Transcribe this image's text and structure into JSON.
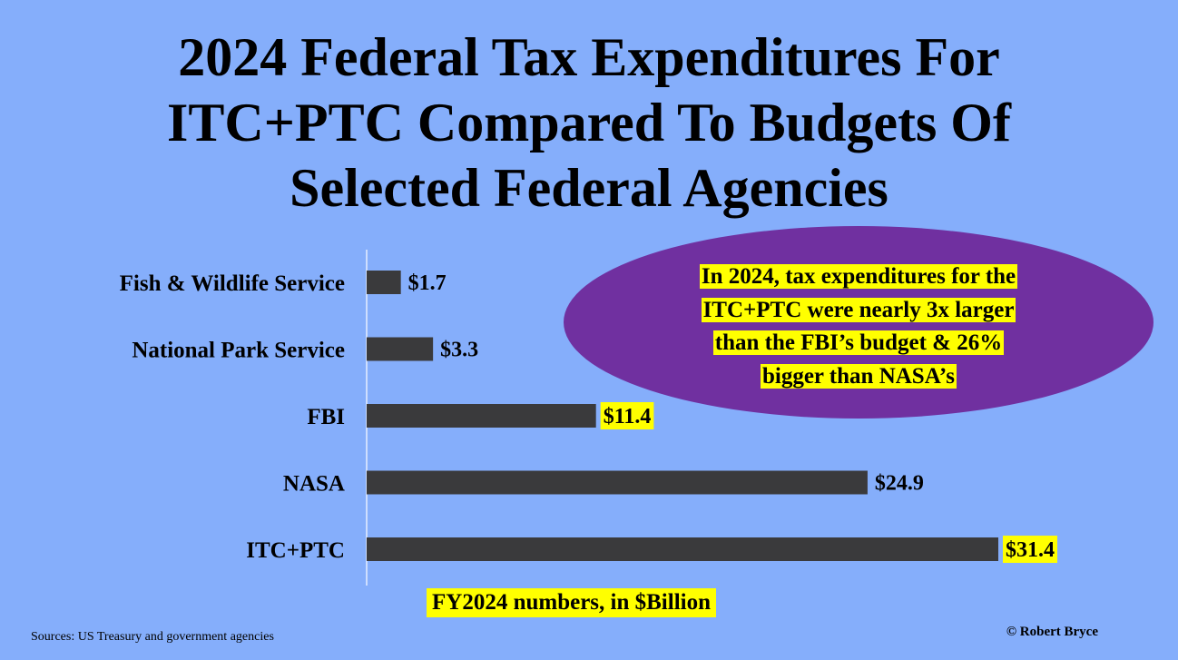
{
  "title_lines": [
    "2024 Federal Tax Expenditures For",
    "ITC+PTC Compared To Budgets Of",
    "Selected Federal Agencies"
  ],
  "callout": {
    "lines": [
      "In 2024, tax expenditures for the",
      "ITC+PTC were nearly 3x larger",
      "than the FBI’s budget & 26%",
      "bigger than NASA’s"
    ],
    "oval_color": "#7030a0",
    "highlight_color": "#ffff00"
  },
  "units_note": "FY2024 numbers, in $Billion",
  "sources": "Sources: US Treasury and government agencies",
  "copyright": "© Robert Bryce",
  "colors": {
    "background": "#85aefb",
    "bar": "#3a3a3c",
    "highlight": "#ffff00"
  },
  "chart_data": {
    "type": "bar",
    "orientation": "horizontal",
    "categories": [
      "Fish & Wildlife Service",
      "National Park Service",
      "FBI",
      "NASA",
      "ITC+PTC"
    ],
    "values": [
      1.7,
      3.3,
      11.4,
      24.9,
      31.4
    ],
    "value_labels": [
      "$1.7",
      "$3.3",
      "$11.4",
      "$24.9",
      "$31.4"
    ],
    "highlighted_value_labels": [
      false,
      false,
      true,
      false,
      true
    ],
    "xlim": [
      0,
      31.4
    ],
    "grid": false,
    "legend": "none"
  }
}
